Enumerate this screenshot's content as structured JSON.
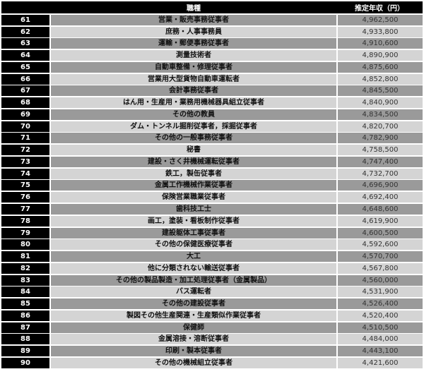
{
  "header": {
    "occupation": "職種",
    "income": "推定年収（円）"
  },
  "rows": [
    {
      "rank": "61",
      "occupation": "営業・販売事務従事者",
      "income": "4,962,500"
    },
    {
      "rank": "62",
      "occupation": "庶務・人事事務員",
      "income": "4,933,800"
    },
    {
      "rank": "63",
      "occupation": "運輸・郵便事務従事者",
      "income": "4,910,600"
    },
    {
      "rank": "64",
      "occupation": "測量技術者",
      "income": "4,890,900"
    },
    {
      "rank": "65",
      "occupation": "自動車整備・修理従事者",
      "income": "4,875,600"
    },
    {
      "rank": "66",
      "occupation": "営業用大型貨物自動車運転者",
      "income": "4,852,800"
    },
    {
      "rank": "67",
      "occupation": "会計事務従事者",
      "income": "4,845,500"
    },
    {
      "rank": "68",
      "occupation": "はん用・生産用・業務用機械器具組立従事者",
      "income": "4,840,900"
    },
    {
      "rank": "69",
      "occupation": "その他の教員",
      "income": "4,834,500"
    },
    {
      "rank": "70",
      "occupation": "ダム・トンネル掘削従事者，採掘従事者",
      "income": "4,820,700"
    },
    {
      "rank": "71",
      "occupation": "その他の一般事務従事者",
      "income": "4,782,900"
    },
    {
      "rank": "72",
      "occupation": "秘書",
      "income": "4,758,500"
    },
    {
      "rank": "73",
      "occupation": "建設・さく井機械運転従事者",
      "income": "4,747,400"
    },
    {
      "rank": "74",
      "occupation": "鉄工，製缶従事者",
      "income": "4,732,700"
    },
    {
      "rank": "75",
      "occupation": "金属工作機械作業従事者",
      "income": "4,696,900"
    },
    {
      "rank": "76",
      "occupation": "保険営業職業従事者",
      "income": "4,692,400"
    },
    {
      "rank": "77",
      "occupation": "歯科技工士",
      "income": "4,648,600"
    },
    {
      "rank": "78",
      "occupation": "画工，塗装・看板制作従事者",
      "income": "4,619,900"
    },
    {
      "rank": "79",
      "occupation": "建設躯体工事従事者",
      "income": "4,600,500"
    },
    {
      "rank": "80",
      "occupation": "その他の保健医療従事者",
      "income": "4,592,600"
    },
    {
      "rank": "81",
      "occupation": "大工",
      "income": "4,570,700"
    },
    {
      "rank": "82",
      "occupation": "他に分類されない輸送従事者",
      "income": "4,567,800"
    },
    {
      "rank": "83",
      "occupation": "その他の製品製造・加工処理従事者（金属製品）",
      "income": "4,560,000"
    },
    {
      "rank": "84",
      "occupation": "バス運転者",
      "income": "4,531,900"
    },
    {
      "rank": "85",
      "occupation": "その他の建設従事者",
      "income": "4,526,400"
    },
    {
      "rank": "86",
      "occupation": "製図その他生産関連・生産類似作業従事者",
      "income": "4,520,400"
    },
    {
      "rank": "87",
      "occupation": "保健師",
      "income": "4,510,500"
    },
    {
      "rank": "88",
      "occupation": "金属溶接・溶断従事者",
      "income": "4,484,000"
    },
    {
      "rank": "89",
      "occupation": "印刷・製本従事者",
      "income": "4,443,100"
    },
    {
      "rank": "90",
      "occupation": "その他の機械組立従事者",
      "income": "4,421,600"
    }
  ]
}
